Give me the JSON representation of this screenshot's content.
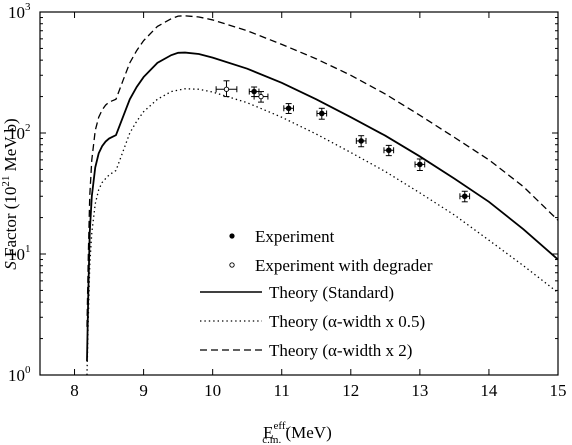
{
  "chart_data": {
    "type": "line",
    "xlabel": "E",
    "xlabel_sup": "eff.",
    "xlabel_sub": "c.m.",
    "xlabel_unit": " (MeV)",
    "ylabel_italic": "S",
    "ylabel_rest": " Factor (10",
    "ylabel_sup": "21",
    "ylabel_end": " MeV b)",
    "xlim": [
      7.5,
      15
    ],
    "ylim": [
      1,
      1000
    ],
    "yscale": "log",
    "xticks": [
      "8",
      "9",
      "10",
      "11",
      "12",
      "13",
      "14",
      "15"
    ],
    "ytick_bases": [
      "10",
      "10",
      "10",
      "10"
    ],
    "ytick_exps": [
      "0",
      "1",
      "2",
      "3"
    ],
    "legend_position": "bottom-left",
    "legend": [
      "Experiment",
      "Experiment with degrader",
      "Theory (Standard)",
      "Theory (α-width x 0.5)",
      "Theory (α-width x 2)"
    ],
    "series": [
      {
        "name": "Experiment",
        "kind": "points-filled",
        "points": [
          {
            "x": 10.6,
            "y": 220,
            "xerr": 0.07,
            "yerr_lo": 20,
            "yerr_hi": 20
          },
          {
            "x": 11.1,
            "y": 160,
            "xerr": 0.07,
            "yerr_lo": 15,
            "yerr_hi": 15
          },
          {
            "x": 11.58,
            "y": 145,
            "xerr": 0.07,
            "yerr_lo": 15,
            "yerr_hi": 15
          },
          {
            "x": 12.15,
            "y": 86,
            "xerr": 0.07,
            "yerr_lo": 9,
            "yerr_hi": 9
          },
          {
            "x": 12.55,
            "y": 72,
            "xerr": 0.07,
            "yerr_lo": 7,
            "yerr_hi": 7
          },
          {
            "x": 13.0,
            "y": 55,
            "xerr": 0.07,
            "yerr_lo": 6,
            "yerr_hi": 6
          },
          {
            "x": 13.65,
            "y": 30,
            "xerr": 0.07,
            "yerr_lo": 3,
            "yerr_hi": 3
          }
        ]
      },
      {
        "name": "Experiment with degrader",
        "kind": "points-open",
        "points": [
          {
            "x": 10.2,
            "y": 230,
            "xerr": 0.15,
            "yerr_lo": 30,
            "yerr_hi": 40
          },
          {
            "x": 10.7,
            "y": 200,
            "xerr": 0.1,
            "yerr_lo": 20,
            "yerr_hi": 20
          }
        ]
      },
      {
        "name": "Theory (Standard)",
        "kind": "solid",
        "x": [
          8.18,
          8.2,
          8.22,
          8.25,
          8.3,
          8.35,
          8.4,
          8.45,
          8.5,
          8.55,
          8.6,
          8.7,
          8.8,
          8.9,
          9.0,
          9.2,
          9.4,
          9.5,
          9.6,
          9.8,
          10.0,
          10.5,
          11.0,
          11.5,
          12.0,
          12.5,
          13.0,
          13.5,
          14.0,
          14.5,
          15.0
        ],
        "y": [
          1.3,
          5,
          15,
          30,
          52,
          68,
          78,
          85,
          90,
          93,
          96,
          135,
          190,
          240,
          290,
          380,
          440,
          460,
          462,
          450,
          420,
          340,
          260,
          190,
          135,
          95,
          64,
          42,
          27,
          16,
          9
        ]
      },
      {
        "name": "Theory (α-width x 0.5)",
        "kind": "dotted",
        "x": [
          8.18,
          8.2,
          8.22,
          8.25,
          8.3,
          8.35,
          8.4,
          8.45,
          8.5,
          8.55,
          8.6,
          8.7,
          8.8,
          8.9,
          9.0,
          9.2,
          9.4,
          9.6,
          9.8,
          10.0,
          10.5,
          11.0,
          11.5,
          12.0,
          12.5,
          13.0,
          13.5,
          14.0,
          14.5,
          15.0
        ],
        "y": [
          0.9,
          3,
          8,
          15,
          26,
          34,
          39,
          42,
          45,
          47,
          49,
          70,
          100,
          125,
          150,
          190,
          220,
          232,
          230,
          218,
          178,
          135,
          98,
          69,
          48,
          32,
          21,
          13,
          8,
          4.8
        ]
      },
      {
        "name": "Theory (α-width x 2)",
        "kind": "dashed",
        "x": [
          8.18,
          8.2,
          8.22,
          8.25,
          8.3,
          8.35,
          8.4,
          8.45,
          8.5,
          8.55,
          8.6,
          8.7,
          8.8,
          8.9,
          9.0,
          9.2,
          9.4,
          9.5,
          9.6,
          9.8,
          10.0,
          10.5,
          11.0,
          11.5,
          12.0,
          12.5,
          13.0,
          13.5,
          14.0,
          14.5,
          15.0
        ],
        "y": [
          2.5,
          10,
          30,
          60,
          105,
          135,
          155,
          170,
          180,
          185,
          190,
          270,
          380,
          480,
          580,
          760,
          880,
          925,
          930,
          910,
          860,
          700,
          540,
          410,
          300,
          210,
          140,
          92,
          60,
          36,
          19
        ]
      }
    ]
  }
}
